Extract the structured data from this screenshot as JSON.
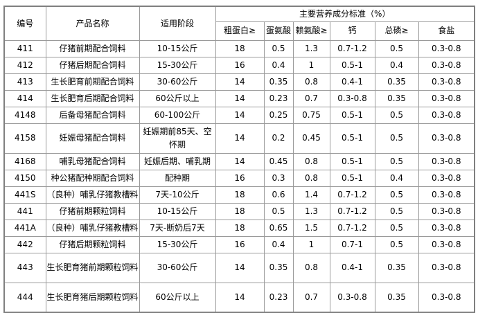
{
  "table": {
    "header": {
      "number": "编号",
      "product": "产品名称",
      "stage": "适用阶段",
      "nutrition_group": "主要营养成分标准（%）",
      "nutrition_cols": [
        "粗蛋白≥",
        "蛋氨酸",
        "赖氨酸≥",
        "钙",
        "总磷≥",
        "食盐"
      ]
    },
    "rows": [
      {
        "number": "411",
        "product": "仔猪前期配合饲料",
        "stage": "10-15公斤",
        "crude_protein": "18",
        "methionine": "0.5",
        "lysine": "1.3",
        "calcium": "0.7-1.2",
        "total_phosphorus": "0.5",
        "salt": "0.3-0.8"
      },
      {
        "number": "412",
        "product": "仔猪后期配合饲料",
        "stage": "15-30公斤",
        "crude_protein": "16",
        "methionine": "0.4",
        "lysine": "1",
        "calcium": "0.5-1",
        "total_phosphorus": "0.4",
        "salt": "0.3-0.8"
      },
      {
        "number": "413",
        "product": "生长肥育前期配合饲料",
        "stage": "30-60公斤",
        "crude_protein": "14",
        "methionine": "0.35",
        "lysine": "0.8",
        "calcium": "0.4-1",
        "total_phosphorus": "0.35",
        "salt": "0.3-0.8"
      },
      {
        "number": "414",
        "product": "生长肥育后期配合饲料",
        "stage": "60公斤以上",
        "crude_protein": "14",
        "methionine": "0.23",
        "lysine": "0.7",
        "calcium": "0.3-0.8",
        "total_phosphorus": "0.35",
        "salt": "0.3-0.8"
      },
      {
        "number": "4148",
        "product": "后备母猪配合饲料",
        "stage": "60-100公斤",
        "crude_protein": "14",
        "methionine": "0.25",
        "lysine": "0.75",
        "calcium": "0.5-1",
        "total_phosphorus": "0.5",
        "salt": "0.3-0.8"
      },
      {
        "number": "4158",
        "product": "妊娠母猪配合饲料",
        "stage": "妊娠期前85天、空怀期",
        "crude_protein": "14",
        "methionine": "0.2",
        "lysine": "0.45",
        "calcium": "0.5-1",
        "total_phosphorus": "0.5",
        "salt": "0.3-0.8"
      },
      {
        "number": "4168",
        "product": "哺乳母猪配合饲料",
        "stage": "妊娠后期、哺乳期",
        "crude_protein": "14",
        "methionine": "0.45",
        "lysine": "0.8",
        "calcium": "0.5-1",
        "total_phosphorus": "0.5",
        "salt": "0.3-0.8"
      },
      {
        "number": "4150",
        "product": "种公猪配种期配合饲料",
        "stage": "配种期",
        "crude_protein": "16",
        "methionine": "0.3",
        "lysine": "0.8",
        "calcium": "0.5-1",
        "total_phosphorus": "0.4",
        "salt": "0.3-0.8"
      },
      {
        "number": "441S",
        "product": "（良种）哺乳仔猪教槽料",
        "stage": "7天-10公斤",
        "crude_protein": "18",
        "methionine": "0.6",
        "lysine": "1.4",
        "calcium": "0.7-1.2",
        "total_phosphorus": "0.5",
        "salt": "0.3-0.8"
      },
      {
        "number": "441",
        "product": "仔猪前期颗粒饲料",
        "stage": "10-15公斤",
        "crude_protein": "18",
        "methionine": "0.5",
        "lysine": "1.3",
        "calcium": "0.7-1.2",
        "total_phosphorus": "0.5",
        "salt": "0.3-0.8"
      },
      {
        "number": "441A",
        "product": "（良种）哺乳仔猪教槽料",
        "stage": "7天-断奶后7天",
        "crude_protein": "18",
        "methionine": "0.65",
        "lysine": "1.5",
        "calcium": "0.7-1.2",
        "total_phosphorus": "0.5",
        "salt": "0.3-0.8"
      },
      {
        "number": "442",
        "product": "仔猪后期颗粒饲料",
        "stage": "15-30公斤",
        "crude_protein": "16",
        "methionine": "0.4",
        "lysine": "1",
        "calcium": "0.7-1",
        "total_phosphorus": "0.5",
        "salt": "0.3-0.8"
      },
      {
        "number": "443",
        "product": "生长肥育猪前期颗粒饲料",
        "stage": "30-60公斤",
        "crude_protein": "14",
        "methionine": "0.35",
        "lysine": "0.8",
        "calcium": "0.4-1",
        "total_phosphorus": "0.35",
        "salt": "0.3-0.8"
      },
      {
        "number": "444",
        "product": "生长肥育猪后期颗粒饲料",
        "stage": "60公斤以上",
        "crude_protein": "14",
        "methionine": "0.23",
        "lysine": "0.7",
        "calcium": "0.3-0.8",
        "total_phosphorus": "0.35",
        "salt": "0.3-0.8"
      }
    ]
  },
  "colors": {
    "outer_border": "#7f7f7f",
    "cell_border": "#9a9a9a",
    "text": "#000000",
    "background": "#ffffff"
  }
}
